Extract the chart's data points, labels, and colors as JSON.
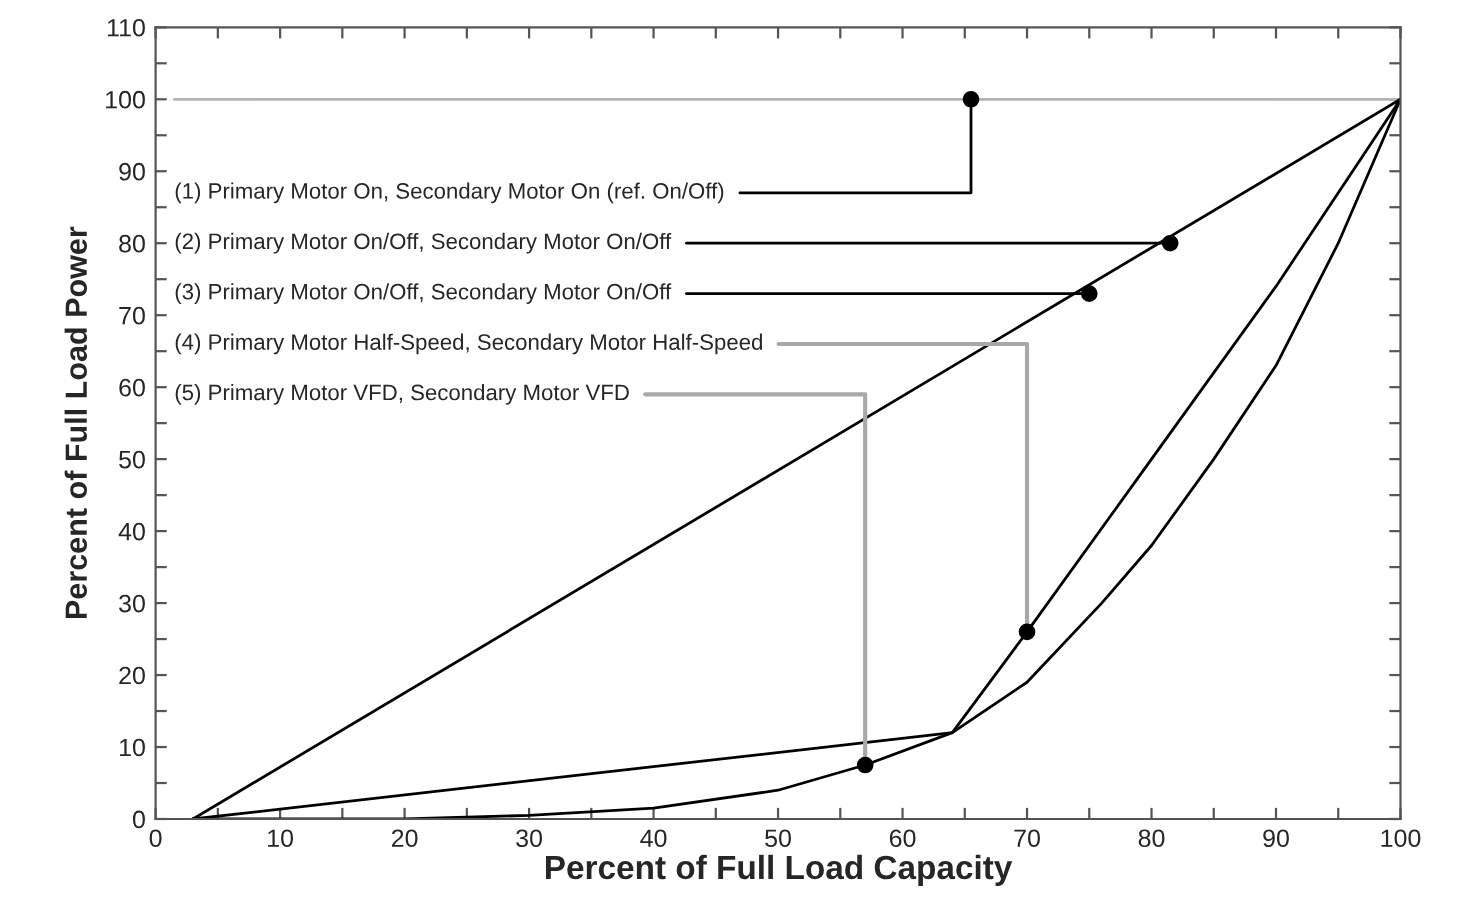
{
  "chart_data": {
    "type": "line",
    "xlabel": "Percent of Full Load Capacity",
    "ylabel": "Percent of Full Load Power",
    "xlim": [
      0,
      100
    ],
    "ylim": [
      0,
      110
    ],
    "xticks": [
      0,
      {
        "value": 5,
        "label": null
      },
      10,
      {
        "value": 15,
        "label": null
      },
      20,
      {
        "value": 25,
        "label": null
      },
      30,
      {
        "value": 35,
        "label": null
      },
      40,
      {
        "value": 45,
        "label": null
      },
      50,
      {
        "value": 55,
        "label": null
      },
      60,
      {
        "value": 65,
        "label": null
      },
      70,
      {
        "value": 75,
        "label": null
      },
      80,
      {
        "value": 85,
        "label": null
      },
      90,
      {
        "value": 95,
        "label": null
      },
      100
    ],
    "yticks": [
      0,
      {
        "value": 5,
        "label": null
      },
      10,
      {
        "value": 15,
        "label": null
      },
      20,
      {
        "value": 25,
        "label": null
      },
      30,
      {
        "value": 35,
        "label": null
      },
      40,
      {
        "value": 45,
        "label": null
      },
      50,
      {
        "value": 55,
        "label": null
      },
      60,
      {
        "value": 65,
        "label": null
      },
      70,
      {
        "value": 75,
        "label": null
      },
      80,
      {
        "value": 85,
        "label": null
      },
      90,
      {
        "value": 95,
        "label": null
      },
      100,
      {
        "value": 105,
        "label": null
      },
      110
    ],
    "grid": false,
    "legend": false,
    "line_style": "solid",
    "series": [
      {
        "color": "#b4b4b4",
        "x": [
          1.5,
          100
        ],
        "values": [
          100,
          100
        ]
      },
      {
        "color": "#000000",
        "x": [
          3,
          100
        ],
        "values": [
          0,
          100
        ]
      },
      {
        "color": "#000000",
        "x": [
          3,
          64,
          70,
          80,
          90,
          100
        ],
        "values": [
          0,
          12,
          26,
          50,
          74,
          100
        ]
      },
      {
        "color": "#000000",
        "x": [
          3,
          20,
          30,
          40,
          50,
          57,
          64,
          70,
          76,
          80,
          85,
          90,
          95,
          100
        ],
        "values": [
          0,
          0,
          0.5,
          1.5,
          4,
          7.5,
          12,
          19,
          30,
          38,
          50,
          63,
          80,
          100
        ]
      },
      {
        "type": "scatter",
        "color": "#000000",
        "x": [
          65.5,
          81.5,
          75,
          70,
          57
        ],
        "values": [
          100,
          80,
          73,
          26,
          7.5
        ]
      }
    ],
    "annotations": [
      {
        "text": "(1) Primary Motor On, Secondary Motor On (ref. On/Off)",
        "x": 65.5,
        "y": 100
      },
      {
        "text": "(2) Primary Motor On/Off, Secondary Motor On/Off",
        "x": 81.5,
        "y": 80
      },
      {
        "text": "(3) Primary Motor On/Off, Secondary Motor On/Off",
        "x": 75,
        "y": 73
      },
      {
        "text": "(4) Primary Motor Half-Speed, Secondary Motor Half-Speed",
        "x": 70,
        "y": 26
      },
      {
        "text": "(5) Primary Motor VFD, Secondary Motor VFD",
        "x": 57,
        "y": 7.5
      }
    ]
  }
}
